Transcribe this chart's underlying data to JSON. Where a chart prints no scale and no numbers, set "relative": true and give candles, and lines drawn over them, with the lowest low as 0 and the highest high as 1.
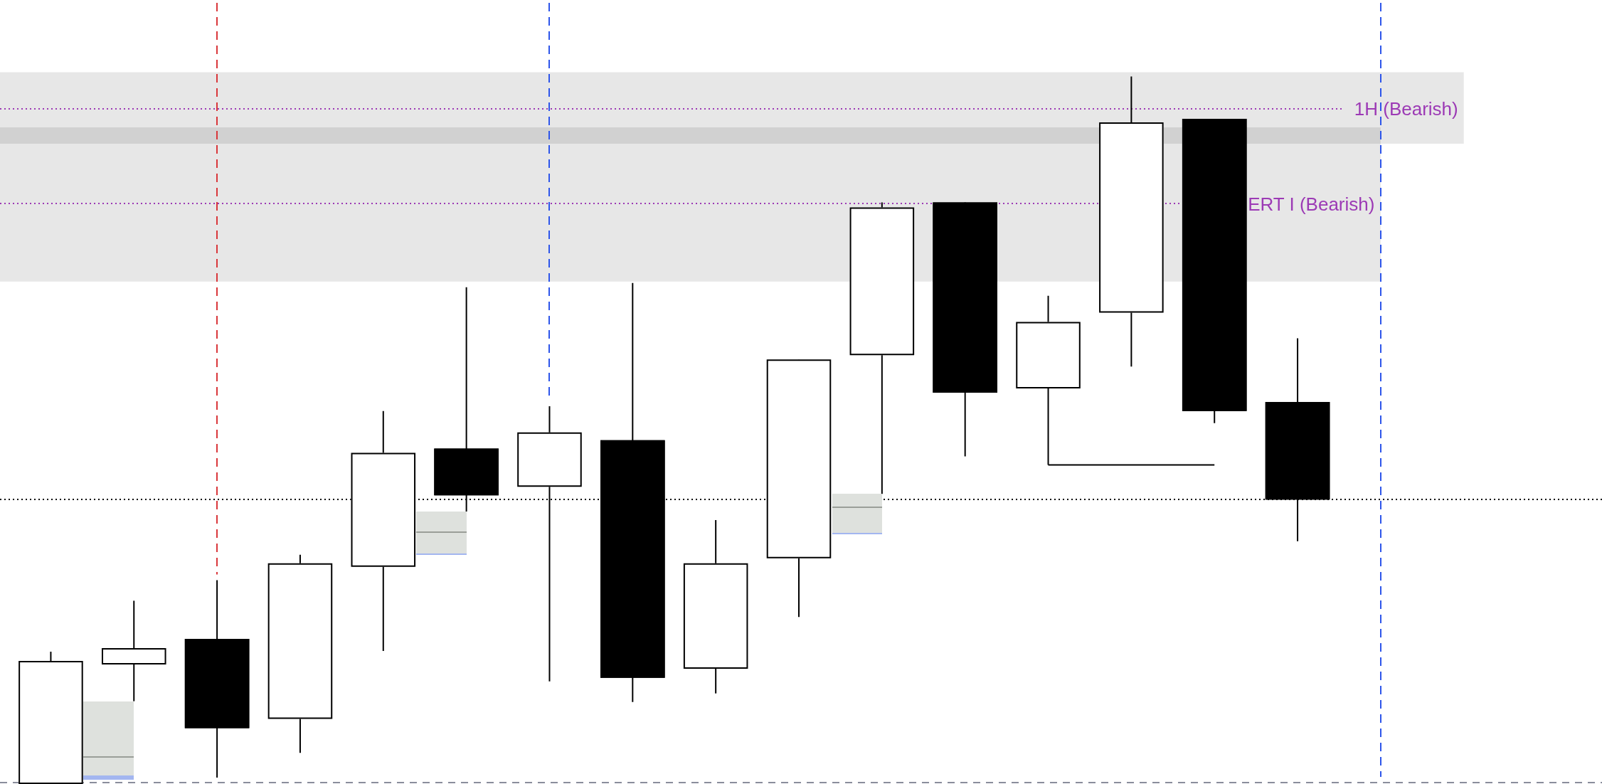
{
  "chart_data": {
    "type": "candlestick",
    "relative": true,
    "tick_labels": false,
    "categories": [
      null,
      null,
      null,
      null,
      null,
      null,
      null,
      null,
      null,
      null,
      null,
      null,
      null,
      null,
      null,
      null,
      null,
      null,
      null
    ],
    "ohlc": [
      [
        0,
        0.187,
        0,
        0.174
      ],
      [
        0.169,
        0.259,
        0.117,
        0.192
      ],
      [
        0.205,
        0.288,
        0.009,
        0.079
      ],
      [
        0.092,
        0.324,
        0.044,
        0.312
      ],
      [
        0.307,
        0.527,
        0.188,
        0.468
      ],
      [
        0.474,
        0.702,
        0.385,
        0.408
      ],
      [
        0.42,
        0.534,
        0.145,
        0.497
      ],
      [
        0.486,
        0.708,
        0.116,
        0.15
      ],
      [
        0.163,
        0.373,
        0.128,
        0.312
      ],
      [
        0.319,
        0.6,
        0.236,
        0.6
      ],
      [
        0.606,
        0.822,
        0.41,
        0.815
      ],
      [
        0.822,
        0.822,
        0.463,
        0.553
      ],
      [
        0.559,
        0.69,
        0.451,
        0.653
      ],
      [
        0.666,
        1,
        0.59,
        0.935
      ],
      [
        0.94,
        0.94,
        0.51,
        0.527
      ],
      [
        0.54,
        0.63,
        0.343,
        0.402
      ],
      null,
      null,
      null
    ],
    "colors": [
      "#ffffff",
      "#ffffff",
      "#000000",
      "#ffffff",
      "#ffffff",
      "#000000",
      "#ffffff",
      "#000000",
      "#ffffff",
      "#ffffff",
      "#ffffff",
      "#000000",
      "#ffffff",
      "#ffffff",
      "#000000",
      "#000000",
      null,
      null,
      null
    ],
    "series": [
      {
        "type": "line",
        "color": "#000000",
        "values": [
          null,
          null,
          null,
          null,
          null,
          null,
          null,
          null,
          null,
          null,
          null,
          null,
          0.451,
          0.451,
          0.451,
          null,
          null,
          null,
          null
        ]
      }
    ],
    "ref_lines": [
      {
        "axis": "y",
        "value": 0.954,
        "label": "1H (Bearish)",
        "color": "#9c3ab5",
        "line_style": "dotted"
      },
      {
        "axis": "y",
        "value": 0.82,
        "label": "ERT I (Bearish)",
        "color": "#9c3ab5",
        "line_style": "dotted"
      },
      {
        "axis": "y",
        "value": 0.402,
        "color": "#000000",
        "line_style": "dotted"
      },
      {
        "axis": "y",
        "value": 0.002,
        "color": "#8a8d9c",
        "line_style": "dashed"
      }
    ],
    "bands": [
      {
        "axis": "y",
        "from": 0.905,
        "to": 1.006,
        "color": "#e7e7e7"
      },
      {
        "axis": "y",
        "from": 0.71,
        "to": 0.928,
        "color": "#e7e7e7"
      }
    ]
  }
}
